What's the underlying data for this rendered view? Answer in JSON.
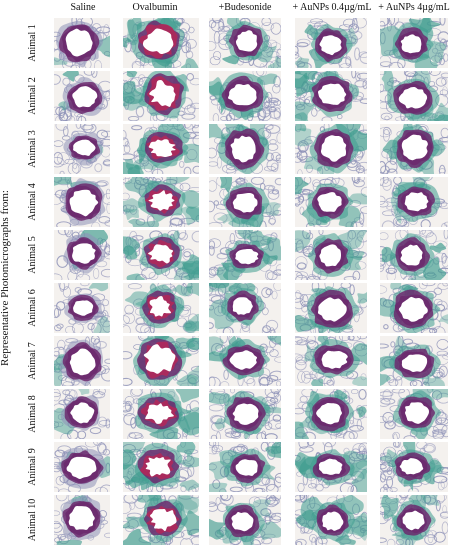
{
  "figure": {
    "side_title": "Representative Photomicrographs from:",
    "columns": [
      {
        "id": "saline",
        "label": "Saline"
      },
      {
        "id": "ovalbumin",
        "label": "Ovalbumin"
      },
      {
        "id": "budesonide",
        "label": "+Budesonide"
      },
      {
        "id": "aunps-low",
        "label": "+ AuNPs 0.4µg/mL"
      },
      {
        "id": "aunps-high",
        "label": "+ AuNPs 4µg/mL"
      }
    ],
    "rows": [
      {
        "label": "Animal 1"
      },
      {
        "label": "Animal 2"
      },
      {
        "label": "Animal 3"
      },
      {
        "label": "Animal 4"
      },
      {
        "label": "Animal 5"
      },
      {
        "label": "Animal 6"
      },
      {
        "label": "Animal 7"
      },
      {
        "label": "Animal 8"
      },
      {
        "label": "Animal 9"
      },
      {
        "label": "Animal 10"
      }
    ],
    "colors": {
      "background": "#f4f1ee",
      "alveolar_tissue": "#8e92b8",
      "collagen": "#3f9c8f",
      "epithelium": "#6c2a6e",
      "mucus": "#b0285a",
      "lumen": "#ffffff"
    },
    "panel_style": {
      "saline": "normal",
      "ovalbumin": "inflamed",
      "budesonide": "treated",
      "aunps-low": "treated",
      "aunps-high": "treated"
    }
  }
}
